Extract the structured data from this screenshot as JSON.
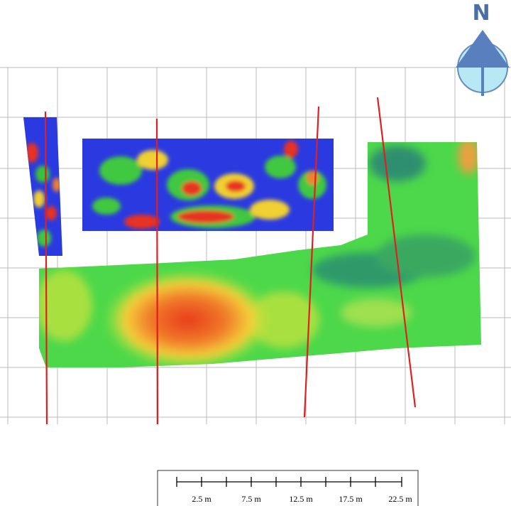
{
  "north_label": "N",
  "scale_bar": {
    "labels": [
      "2.5 m",
      "7.5 m",
      "12.5 m",
      "17.5 m",
      "22.5 m"
    ]
  }
}
